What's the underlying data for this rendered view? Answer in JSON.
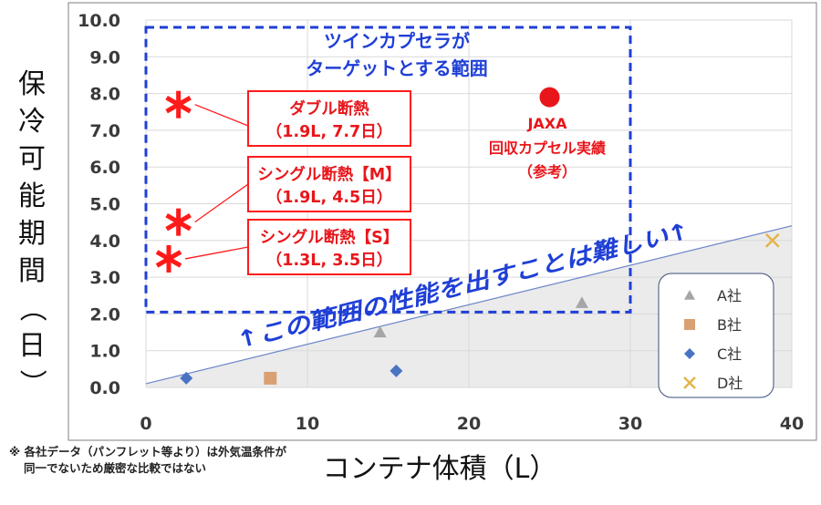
{
  "chart_data": {
    "type": "scatter",
    "xlim": [
      0,
      40
    ],
    "ylim": [
      0,
      10
    ],
    "x_ticks": [
      "0",
      "10",
      "20",
      "30",
      "40"
    ],
    "y_ticks": [
      "0.0",
      "1.0",
      "2.0",
      "3.0",
      "4.0",
      "5.0",
      "6.0",
      "7.0",
      "8.0",
      "9.0",
      "10.0"
    ],
    "ylabel": "保冷可能期間（日）",
    "xlabel": "コンテナ体積（L）",
    "grid": true,
    "legend_position": "bottom-right",
    "series": [
      {
        "name": "A社",
        "marker": "triangle",
        "color": "#a6a6a6",
        "points": [
          [
            14.5,
            1.5
          ],
          [
            27.0,
            2.3
          ]
        ]
      },
      {
        "name": "B社",
        "marker": "square",
        "color": "#d9a072",
        "points": [
          [
            7.7,
            0.25
          ]
        ]
      },
      {
        "name": "C社",
        "marker": "diamond",
        "color": "#4a73c4",
        "points": [
          [
            2.5,
            0.25
          ],
          [
            15.5,
            0.45
          ]
        ]
      },
      {
        "name": "D社",
        "marker": "x",
        "color": "#e3b54a",
        "points": [
          [
            38.8,
            4.0
          ]
        ]
      }
    ],
    "twin_capsule_points": [
      {
        "x": 1.9,
        "y": 7.7,
        "label_lines": [
          "ダブル断熱",
          "（1.9L, 7.7日）"
        ]
      },
      {
        "x": 1.9,
        "y": 4.5,
        "label_lines": [
          "シングル断熱【M】",
          "（1.9L, 4.5日）"
        ]
      },
      {
        "x": 1.3,
        "y": 3.5,
        "label_lines": [
          "シングル断熱【S】",
          "（1.3L, 3.5日）"
        ]
      }
    ],
    "twin_capsule_color": "#ff1a1a",
    "jaxa_point": {
      "x": 25.0,
      "y": 7.9,
      "label_lines": [
        "JAXA",
        "回収カプセル実績",
        "（参考）"
      ],
      "color": "#e8161b"
    },
    "target_region": {
      "x0": 0,
      "x1": 30,
      "y0": 2.05,
      "y1": 9.8,
      "title_lines": [
        "ツインカプセラが",
        "ターゲットとする範囲"
      ],
      "color": "#1f3fd6"
    },
    "trend_line": {
      "x0": 0,
      "y0": 0.1,
      "x1": 40,
      "y1": 4.4,
      "label": "↑この範囲の性能を出すことは難しい↑",
      "fill": "#ebebeb",
      "line_color": "#6b86c7"
    }
  },
  "footnote_lines": [
    "※ 各社データ（パンフレット等より）は外気温条件が",
    "同一でないため厳密な比較ではない"
  ]
}
